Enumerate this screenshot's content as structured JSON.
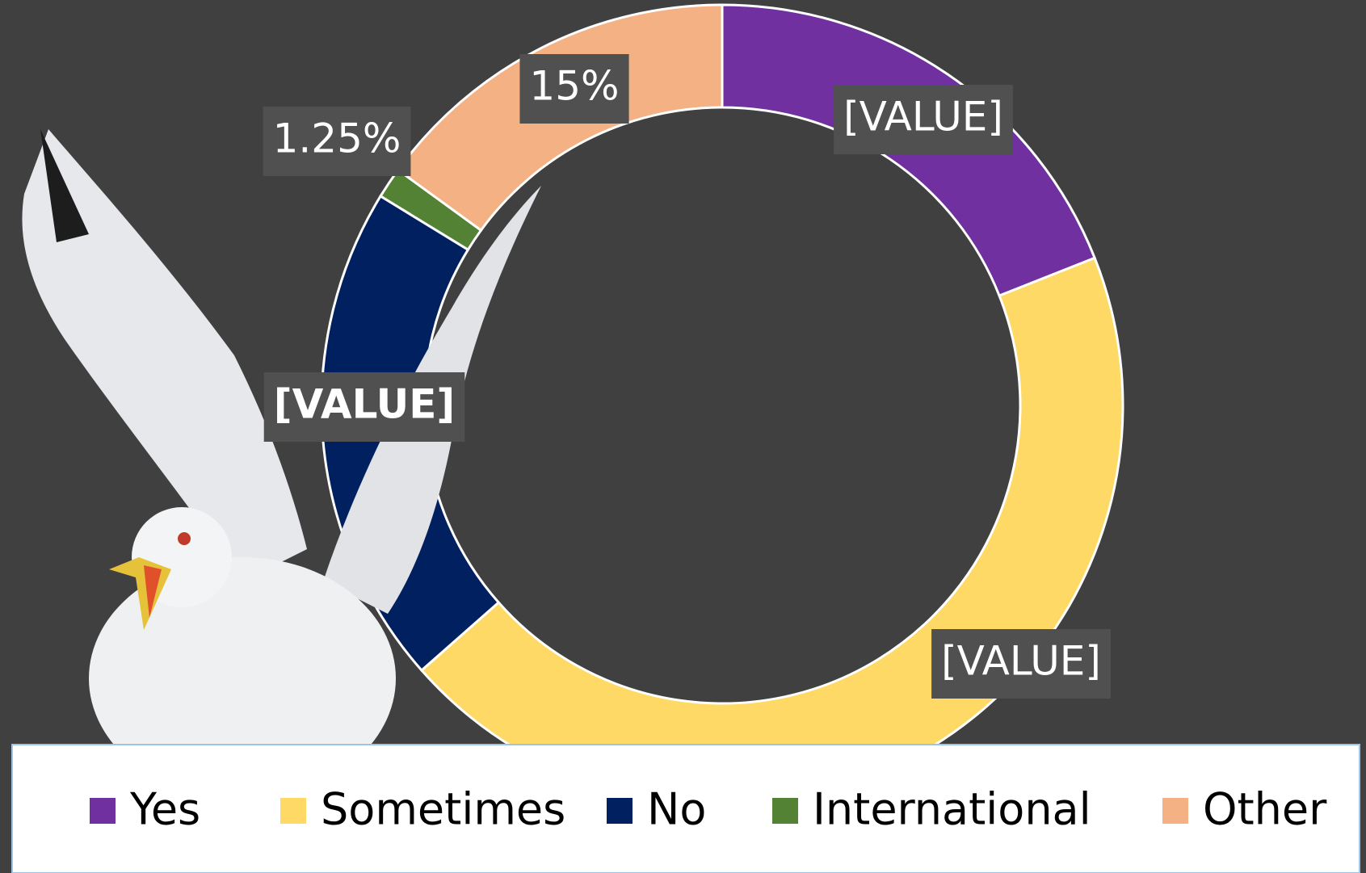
{
  "chart_data": {
    "type": "donut",
    "categories": [
      "Yes",
      "Sometimes",
      "No",
      "International",
      "Other"
    ],
    "values": [
      19,
      44.5,
      20.25,
      1.25,
      15
    ],
    "value_labels": [
      "[VALUE]",
      "[VALUE]",
      "[VALUE]",
      "1.25%",
      "15%"
    ],
    "colors": [
      "#7030a0",
      "#ffd966",
      "#002060",
      "#548235",
      "#f4b183"
    ],
    "legend": "bottom"
  }
}
